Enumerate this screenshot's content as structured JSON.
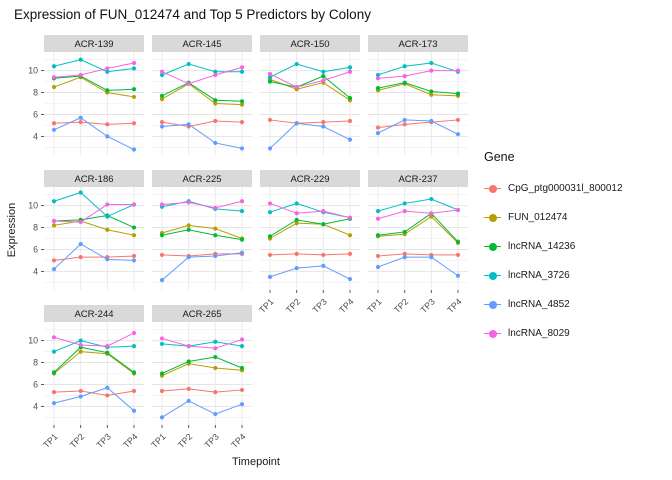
{
  "chart_data": {
    "type": "line",
    "title": "Expression of FUN_012474 and Top 5 Predictors by Colony",
    "xlabel": "Timepoint",
    "ylabel": "Expression",
    "legend_title": "Gene",
    "legend_position": "right",
    "grid": true,
    "x_categories": [
      "TP1",
      "TP2",
      "TP3",
      "TP4"
    ],
    "y_ticks": [
      4,
      6,
      8,
      10
    ],
    "ylim": [
      2.3,
      11.7
    ],
    "genes": [
      {
        "name": "CpG_ptg000031l_800012",
        "color": "#F8766D"
      },
      {
        "name": "FUN_012474",
        "color": "#B79F00"
      },
      {
        "name": "lncRNA_14236",
        "color": "#00BA38"
      },
      {
        "name": "lncRNA_3726",
        "color": "#00BFC4"
      },
      {
        "name": "lncRNA_4852",
        "color": "#619CFF"
      },
      {
        "name": "lncRNA_8029",
        "color": "#F564E3"
      }
    ],
    "facets": [
      {
        "colony": "ACR-139",
        "values": [
          [
            5.2,
            5.3,
            5.1,
            5.2
          ],
          [
            8.5,
            9.4,
            8.0,
            7.6
          ],
          [
            9.3,
            9.5,
            8.2,
            8.3
          ],
          [
            10.4,
            11.0,
            9.9,
            10.2
          ],
          [
            4.6,
            5.7,
            4.0,
            2.8
          ],
          [
            9.4,
            9.6,
            10.2,
            10.7
          ]
        ]
      },
      {
        "colony": "ACR-145",
        "values": [
          [
            5.3,
            4.9,
            5.4,
            5.3
          ],
          [
            7.4,
            8.8,
            7.0,
            6.9
          ],
          [
            7.7,
            8.9,
            7.3,
            7.2
          ],
          [
            9.6,
            10.6,
            9.9,
            9.9
          ],
          [
            4.9,
            5.1,
            3.4,
            2.9
          ],
          [
            9.9,
            8.8,
            9.6,
            10.3
          ]
        ]
      },
      {
        "colony": "ACR-150",
        "values": [
          [
            5.5,
            5.2,
            5.3,
            5.4
          ],
          [
            9.2,
            8.3,
            8.9,
            7.3
          ],
          [
            9.0,
            8.5,
            9.5,
            7.5
          ],
          [
            9.4,
            10.6,
            9.9,
            10.3
          ],
          [
            2.9,
            5.2,
            4.9,
            3.7
          ],
          [
            9.7,
            8.5,
            9.1,
            9.9
          ]
        ]
      },
      {
        "colony": "ACR-173",
        "values": [
          [
            4.8,
            5.1,
            5.3,
            5.5
          ],
          [
            8.2,
            8.8,
            7.8,
            7.7
          ],
          [
            8.4,
            8.9,
            8.1,
            7.9
          ],
          [
            9.6,
            10.4,
            10.7,
            9.9
          ],
          [
            4.3,
            5.5,
            5.4,
            4.2
          ],
          [
            9.3,
            9.5,
            10.0,
            10.0
          ]
        ]
      },
      {
        "colony": "ACR-186",
        "values": [
          [
            5.0,
            5.3,
            5.3,
            5.4
          ],
          [
            8.2,
            8.6,
            7.8,
            7.3
          ],
          [
            8.6,
            8.7,
            9.1,
            8.0
          ],
          [
            10.4,
            11.2,
            9.0,
            10.1
          ],
          [
            4.2,
            6.5,
            5.1,
            5.0
          ],
          [
            8.6,
            8.5,
            10.1,
            10.1
          ]
        ]
      },
      {
        "colony": "ACR-225",
        "values": [
          [
            5.5,
            5.4,
            5.6,
            5.6
          ],
          [
            7.5,
            8.2,
            7.9,
            7.0
          ],
          [
            7.3,
            7.8,
            7.3,
            6.9
          ],
          [
            9.9,
            10.4,
            9.7,
            9.5
          ],
          [
            3.2,
            5.3,
            5.4,
            5.7
          ],
          [
            10.1,
            10.3,
            9.8,
            10.4
          ]
        ]
      },
      {
        "colony": "ACR-229",
        "values": [
          [
            5.5,
            5.6,
            5.5,
            5.6
          ],
          [
            7.0,
            8.4,
            8.3,
            7.3
          ],
          [
            7.2,
            8.7,
            8.3,
            8.8
          ],
          [
            9.4,
            10.2,
            9.4,
            8.9
          ],
          [
            3.5,
            4.3,
            4.5,
            3.3
          ],
          [
            10.2,
            9.3,
            9.5,
            8.9
          ]
        ]
      },
      {
        "colony": "ACR-237",
        "values": [
          [
            5.4,
            5.6,
            5.5,
            5.5
          ],
          [
            7.2,
            7.4,
            9.0,
            6.6
          ],
          [
            7.3,
            7.6,
            9.3,
            6.7
          ],
          [
            9.5,
            10.2,
            10.6,
            9.6
          ],
          [
            4.4,
            5.3,
            5.3,
            3.6
          ],
          [
            8.8,
            9.5,
            9.3,
            9.6
          ]
        ]
      },
      {
        "colony": "ACR-244",
        "values": [
          [
            5.3,
            5.4,
            5.0,
            5.4
          ],
          [
            7.0,
            9.0,
            8.8,
            7.0
          ],
          [
            7.1,
            9.4,
            8.9,
            7.1
          ],
          [
            9.0,
            10.0,
            9.4,
            9.5
          ],
          [
            4.3,
            4.9,
            5.7,
            3.6
          ],
          [
            10.3,
            9.6,
            9.5,
            10.7
          ]
        ]
      },
      {
        "colony": "ACR-265",
        "values": [
          [
            5.4,
            5.6,
            5.3,
            5.5
          ],
          [
            6.8,
            7.9,
            7.5,
            7.3
          ],
          [
            7.0,
            8.1,
            8.5,
            7.5
          ],
          [
            9.7,
            9.5,
            9.9,
            9.5
          ],
          [
            3.0,
            4.5,
            3.3,
            4.2
          ],
          [
            10.2,
            9.5,
            9.3,
            10.1
          ]
        ]
      }
    ]
  }
}
